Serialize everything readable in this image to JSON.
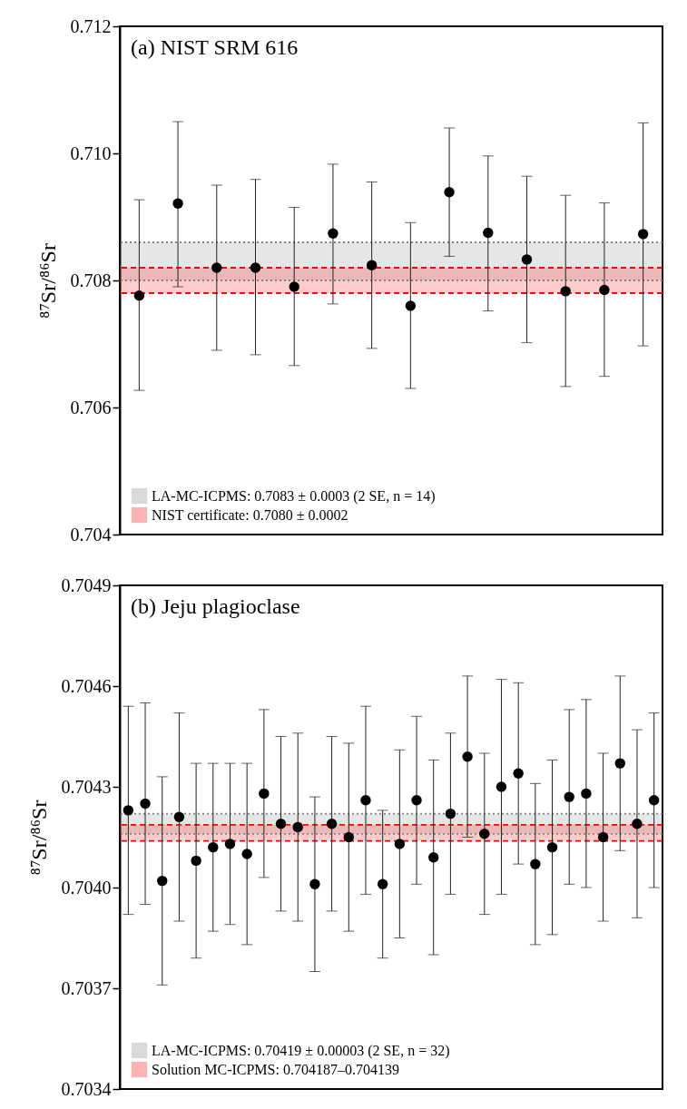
{
  "chart_data": [
    {
      "type": "scatter",
      "title": "(a) NIST SRM 616",
      "ylabel": "⁸⁷Sr/⁸⁶Sr",
      "marker": "circle",
      "legend": "bottom left",
      "tick_labels": "y",
      "grid": false,
      "categories": [
        null,
        null,
        null,
        null,
        null,
        null,
        null,
        null,
        null,
        null,
        null,
        null,
        null,
        null
      ],
      "series": [
        {
          "color": "#000000",
          "values": [
            0.70776,
            0.70921,
            0.7082,
            0.7082,
            0.7079,
            0.70874,
            0.70824,
            0.7076,
            0.70939,
            0.70875,
            0.70833,
            0.70783,
            0.70785,
            0.70873
          ],
          "errors": [
            [
              0.70627,
              0.70927
            ],
            [
              0.7079,
              0.7105
            ],
            [
              0.7069,
              0.7095
            ],
            [
              0.70683,
              0.70959
            ],
            [
              0.70666,
              0.70915
            ],
            [
              0.70763,
              0.70983
            ],
            [
              0.70693,
              0.70955
            ],
            [
              0.7063,
              0.70891
            ],
            [
              0.70838,
              0.7104
            ],
            [
              0.70752,
              0.70996
            ],
            [
              0.70702,
              0.70964
            ],
            [
              0.70633,
              0.70934
            ],
            [
              0.70649,
              0.70922
            ],
            [
              0.70697,
              0.71048
            ]
          ]
        }
      ],
      "ylim": [
        0.704,
        0.712
      ],
      "yticks": [
        0.704,
        0.706,
        0.708,
        {
          "value": 0.71,
          "label": "0.710"
        },
        0.712
      ],
      "bands": [
        {
          "axis": "y",
          "from": 0.708,
          "to": 0.7086,
          "label": "LA-MC-ICPMS: 0.7083 ± 0.0003 (2 SE, n = 14)",
          "color": "#808080"
        },
        {
          "axis": "y",
          "from": 0.7078,
          "to": 0.7082,
          "label": "NIST certificate: 0.7080 ± 0.0002",
          "color": "#ff0000"
        }
      ],
      "ref_lines": [
        {
          "axis": "y",
          "value": 0.708,
          "color": "#808080",
          "line_style": "dotted"
        },
        {
          "axis": "y",
          "value": 0.7086,
          "color": "#808080",
          "line_style": "dotted"
        },
        {
          "axis": "y",
          "value": 0.7078,
          "color": "#ff0000",
          "line_style": "dashed"
        },
        {
          "axis": "y",
          "value": 0.7082,
          "color": "#ff0000",
          "line_style": "dashed"
        }
      ]
    },
    {
      "type": "scatter",
      "title": "(b) Jeju plagioclase",
      "ylabel": "⁸⁷Sr/⁸⁶Sr",
      "marker": "circle",
      "legend": "bottom left",
      "tick_labels": "y",
      "grid": false,
      "categories": [
        null,
        null,
        null,
        null,
        null,
        null,
        null,
        null,
        null,
        null,
        null,
        null,
        null,
        null,
        null,
        null,
        null,
        null,
        null,
        null,
        null,
        null,
        null,
        null,
        null,
        null,
        null,
        null,
        null,
        null,
        null,
        null
      ],
      "series": [
        {
          "color": "#000000",
          "values": [
            0.70423,
            0.70425,
            0.70402,
            0.70421,
            0.70408,
            0.70412,
            0.70413,
            0.7041,
            0.70428,
            0.70419,
            0.70418,
            0.70401,
            0.70419,
            0.70415,
            0.70426,
            0.70401,
            0.70413,
            0.70426,
            0.70409,
            0.70422,
            0.70439,
            0.70416,
            0.7043,
            0.70434,
            0.70407,
            0.70412,
            0.70427,
            0.70428,
            0.70415,
            0.70437,
            0.70419,
            0.70426
          ],
          "errors": [
            [
              0.70392,
              0.70454
            ],
            [
              0.70395,
              0.70455
            ],
            [
              0.70371,
              0.70433
            ],
            [
              0.7039,
              0.70452
            ],
            [
              0.70379,
              0.70437
            ],
            [
              0.70387,
              0.70437
            ],
            [
              0.70389,
              0.70437
            ],
            [
              0.70383,
              0.70437
            ],
            [
              0.70403,
              0.70453
            ],
            [
              0.70393,
              0.70445
            ],
            [
              0.7039,
              0.70446
            ],
            [
              0.70375,
              0.70427
            ],
            [
              0.70393,
              0.70445
            ],
            [
              0.70387,
              0.70443
            ],
            [
              0.70398,
              0.70454
            ],
            [
              0.70379,
              0.70423
            ],
            [
              0.70385,
              0.70441
            ],
            [
              0.70401,
              0.70451
            ],
            [
              0.7038,
              0.70438
            ],
            [
              0.70398,
              0.70446
            ],
            [
              0.70415,
              0.70463
            ],
            [
              0.70392,
              0.7044
            ],
            [
              0.70398,
              0.70462
            ],
            [
              0.70407,
              0.70461
            ],
            [
              0.70383,
              0.70431
            ],
            [
              0.70386,
              0.70438
            ],
            [
              0.70401,
              0.70453
            ],
            [
              0.704,
              0.70456
            ],
            [
              0.7039,
              0.7044
            ],
            [
              0.70411,
              0.70463
            ],
            [
              0.70391,
              0.70447
            ],
            [
              0.704,
              0.70452
            ]
          ]
        }
      ],
      "ylim": [
        0.7034,
        0.7049
      ],
      "yticks": [
        0.7034,
        0.7037,
        {
          "value": 0.704,
          "label": "0.7040"
        },
        0.7043,
        0.7046,
        0.7049
      ],
      "bands": [
        {
          "axis": "y",
          "from": 0.70416,
          "to": 0.70422,
          "label": "LA-MC-ICPMS: 0.70419 ± 0.00003 (2 SE, n = 32)",
          "color": "#808080"
        },
        {
          "axis": "y",
          "from": 0.704139,
          "to": 0.704187,
          "label": "Solution MC-ICPMS: 0.704187–0.704139",
          "color": "#ff0000"
        }
      ],
      "ref_lines": [
        {
          "axis": "y",
          "value": 0.70416,
          "color": "#808080",
          "line_style": "dotted"
        },
        {
          "axis": "y",
          "value": 0.70422,
          "color": "#808080",
          "line_style": "dotted"
        },
        {
          "axis": "y",
          "value": 0.704139,
          "color": "#ff0000",
          "line_style": "dashed"
        },
        {
          "axis": "y",
          "value": 0.704187,
          "color": "#ff0000",
          "line_style": "dashed"
        }
      ]
    }
  ]
}
